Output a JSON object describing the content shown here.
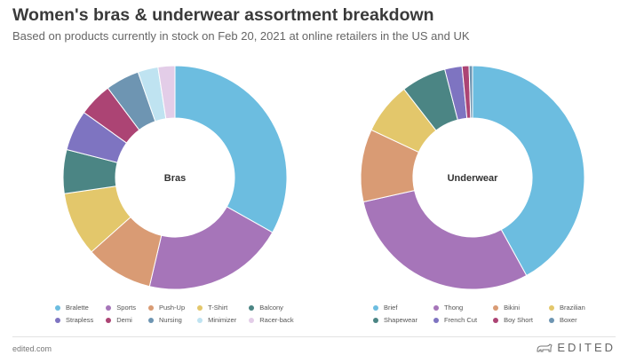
{
  "header": {
    "title": "Women's bras & underwear assortment breakdown",
    "subtitle": "Based on products currently in stock on Feb 20, 2021 at online retailers in the US and UK"
  },
  "footer": {
    "site": "edited.com",
    "logo_text": "EDITED",
    "logo_icon": "bear-icon"
  },
  "chart_data": [
    {
      "type": "pie",
      "donut": true,
      "center_label": "Bras",
      "legend_placement": "bottom",
      "categories": [
        "Bralette",
        "Sports",
        "Push-Up",
        "T-Shirt",
        "Balcony",
        "Strapless",
        "Demi",
        "Nursing",
        "Minimizer",
        "Racer-back"
      ],
      "values": [
        34,
        21,
        10,
        9.5,
        6.5,
        6,
        5,
        5,
        3,
        2.5
      ],
      "colors": [
        "#6cbde0",
        "#a675b9",
        "#d99b74",
        "#e3c76b",
        "#4b8584",
        "#7e74c1",
        "#ac4474",
        "#6e95b2",
        "#bfe3f1",
        "#e3cde8"
      ]
    },
    {
      "type": "pie",
      "donut": true,
      "center_label": "Underwear",
      "legend_placement": "bottom",
      "categories": [
        "Brief",
        "Thong",
        "Bikini",
        "Brazilian",
        "Shapewear",
        "French Cut",
        "Boy Short",
        "Boxer"
      ],
      "values": [
        42,
        29.5,
        10.5,
        7.5,
        6.5,
        2.5,
        1,
        0.5
      ],
      "colors": [
        "#6cbde0",
        "#a675b9",
        "#d99b74",
        "#e3c76b",
        "#4b8584",
        "#7e74c1",
        "#ac4474",
        "#6e95b2"
      ]
    }
  ]
}
